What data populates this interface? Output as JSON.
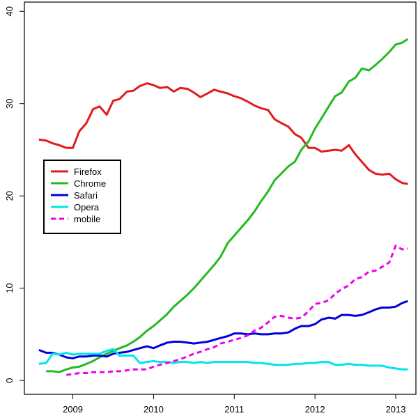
{
  "chart_data": {
    "type": "line",
    "title": "",
    "xlabel": "",
    "ylabel": "",
    "xlim": [
      2008.4,
      2013.25
    ],
    "ylim": [
      -1.5,
      41
    ],
    "x_ticks": [
      2009,
      2010,
      2011,
      2012,
      2013
    ],
    "y_ticks": [
      0,
      10,
      20,
      30,
      40
    ],
    "grid": false,
    "legend_position": "left-middle",
    "series": [
      {
        "name": "Firefox",
        "color": "#e41a1c",
        "dash": "solid",
        "points": [
          [
            2008.58,
            26.1
          ],
          [
            2008.67,
            26.0
          ],
          [
            2008.75,
            25.7
          ],
          [
            2008.83,
            25.5
          ],
          [
            2008.92,
            25.2
          ],
          [
            2009.0,
            25.2
          ],
          [
            2009.08,
            27.0
          ],
          [
            2009.17,
            27.9
          ],
          [
            2009.25,
            29.4
          ],
          [
            2009.33,
            29.7
          ],
          [
            2009.42,
            28.8
          ],
          [
            2009.5,
            30.3
          ],
          [
            2009.58,
            30.5
          ],
          [
            2009.67,
            31.3
          ],
          [
            2009.75,
            31.4
          ],
          [
            2009.83,
            31.9
          ],
          [
            2009.92,
            32.2
          ],
          [
            2010.0,
            32.0
          ],
          [
            2010.08,
            31.7
          ],
          [
            2010.17,
            31.8
          ],
          [
            2010.25,
            31.3
          ],
          [
            2010.33,
            31.7
          ],
          [
            2010.42,
            31.6
          ],
          [
            2010.5,
            31.2
          ],
          [
            2010.58,
            30.7
          ],
          [
            2010.67,
            31.1
          ],
          [
            2010.75,
            31.5
          ],
          [
            2010.83,
            31.3
          ],
          [
            2010.92,
            31.1
          ],
          [
            2011.0,
            30.8
          ],
          [
            2011.08,
            30.6
          ],
          [
            2011.17,
            30.2
          ],
          [
            2011.25,
            29.8
          ],
          [
            2011.33,
            29.5
          ],
          [
            2011.42,
            29.3
          ],
          [
            2011.5,
            28.3
          ],
          [
            2011.58,
            27.9
          ],
          [
            2011.67,
            27.5
          ],
          [
            2011.75,
            26.7
          ],
          [
            2011.83,
            26.3
          ],
          [
            2011.92,
            25.2
          ],
          [
            2012.0,
            25.2
          ],
          [
            2012.08,
            24.8
          ],
          [
            2012.17,
            24.9
          ],
          [
            2012.25,
            25.0
          ],
          [
            2012.33,
            24.9
          ],
          [
            2012.42,
            25.5
          ],
          [
            2012.5,
            24.5
          ],
          [
            2012.58,
            23.7
          ],
          [
            2012.67,
            22.8
          ],
          [
            2012.75,
            22.4
          ],
          [
            2012.83,
            22.3
          ],
          [
            2012.92,
            22.4
          ],
          [
            2013.0,
            21.8
          ],
          [
            2013.08,
            21.4
          ],
          [
            2013.15,
            21.3
          ]
        ]
      },
      {
        "name": "Chrome",
        "color": "#22bb22",
        "dash": "solid",
        "points": [
          [
            2008.67,
            1.0
          ],
          [
            2008.75,
            1.0
          ],
          [
            2008.83,
            0.9
          ],
          [
            2008.92,
            1.2
          ],
          [
            2009.0,
            1.4
          ],
          [
            2009.08,
            1.5
          ],
          [
            2009.17,
            1.8
          ],
          [
            2009.25,
            2.1
          ],
          [
            2009.33,
            2.5
          ],
          [
            2009.42,
            2.9
          ],
          [
            2009.5,
            3.2
          ],
          [
            2009.58,
            3.5
          ],
          [
            2009.67,
            3.8
          ],
          [
            2009.75,
            4.2
          ],
          [
            2009.83,
            4.7
          ],
          [
            2009.92,
            5.4
          ],
          [
            2010.0,
            5.9
          ],
          [
            2010.08,
            6.5
          ],
          [
            2010.17,
            7.2
          ],
          [
            2010.25,
            8.0
          ],
          [
            2010.33,
            8.6
          ],
          [
            2010.42,
            9.3
          ],
          [
            2010.5,
            10.0
          ],
          [
            2010.58,
            10.8
          ],
          [
            2010.67,
            11.7
          ],
          [
            2010.75,
            12.5
          ],
          [
            2010.83,
            13.4
          ],
          [
            2010.92,
            14.9
          ],
          [
            2011.0,
            15.7
          ],
          [
            2011.08,
            16.5
          ],
          [
            2011.17,
            17.4
          ],
          [
            2011.25,
            18.3
          ],
          [
            2011.33,
            19.4
          ],
          [
            2011.42,
            20.5
          ],
          [
            2011.5,
            21.7
          ],
          [
            2011.58,
            22.4
          ],
          [
            2011.67,
            23.2
          ],
          [
            2011.75,
            23.7
          ],
          [
            2011.83,
            25.0
          ],
          [
            2011.92,
            25.9
          ],
          [
            2012.0,
            27.3
          ],
          [
            2012.08,
            28.4
          ],
          [
            2012.17,
            29.7
          ],
          [
            2012.25,
            30.8
          ],
          [
            2012.33,
            31.2
          ],
          [
            2012.42,
            32.4
          ],
          [
            2012.5,
            32.8
          ],
          [
            2012.58,
            33.8
          ],
          [
            2012.67,
            33.6
          ],
          [
            2012.75,
            34.2
          ],
          [
            2012.83,
            34.8
          ],
          [
            2012.92,
            35.6
          ],
          [
            2013.0,
            36.4
          ],
          [
            2013.08,
            36.6
          ],
          [
            2013.15,
            37.0
          ]
        ]
      },
      {
        "name": "Safari",
        "color": "#0000dd",
        "dash": "solid",
        "points": [
          [
            2008.58,
            3.3
          ],
          [
            2008.67,
            3.0
          ],
          [
            2008.75,
            3.0
          ],
          [
            2008.83,
            2.8
          ],
          [
            2008.92,
            2.5
          ],
          [
            2009.0,
            2.4
          ],
          [
            2009.08,
            2.6
          ],
          [
            2009.17,
            2.6
          ],
          [
            2009.25,
            2.7
          ],
          [
            2009.33,
            2.7
          ],
          [
            2009.42,
            2.6
          ],
          [
            2009.5,
            2.9
          ],
          [
            2009.58,
            3.0
          ],
          [
            2009.67,
            3.1
          ],
          [
            2009.75,
            3.3
          ],
          [
            2009.83,
            3.5
          ],
          [
            2009.92,
            3.7
          ],
          [
            2010.0,
            3.5
          ],
          [
            2010.08,
            3.8
          ],
          [
            2010.17,
            4.1
          ],
          [
            2010.25,
            4.2
          ],
          [
            2010.33,
            4.2
          ],
          [
            2010.42,
            4.1
          ],
          [
            2010.5,
            4.0
          ],
          [
            2010.58,
            4.1
          ],
          [
            2010.67,
            4.2
          ],
          [
            2010.75,
            4.4
          ],
          [
            2010.83,
            4.6
          ],
          [
            2010.92,
            4.8
          ],
          [
            2011.0,
            5.1
          ],
          [
            2011.08,
            5.1
          ],
          [
            2011.17,
            5.0
          ],
          [
            2011.25,
            5.1
          ],
          [
            2011.33,
            5.0
          ],
          [
            2011.42,
            5.0
          ],
          [
            2011.5,
            5.1
          ],
          [
            2011.58,
            5.1
          ],
          [
            2011.67,
            5.2
          ],
          [
            2011.75,
            5.6
          ],
          [
            2011.83,
            5.9
          ],
          [
            2011.92,
            5.9
          ],
          [
            2012.0,
            6.1
          ],
          [
            2012.08,
            6.6
          ],
          [
            2012.17,
            6.8
          ],
          [
            2012.25,
            6.7
          ],
          [
            2012.33,
            7.1
          ],
          [
            2012.42,
            7.1
          ],
          [
            2012.5,
            7.0
          ],
          [
            2012.58,
            7.1
          ],
          [
            2012.67,
            7.4
          ],
          [
            2012.75,
            7.7
          ],
          [
            2012.83,
            7.9
          ],
          [
            2012.92,
            7.9
          ],
          [
            2013.0,
            8.0
          ],
          [
            2013.08,
            8.4
          ],
          [
            2013.15,
            8.6
          ]
        ]
      },
      {
        "name": "Opera",
        "color": "#00e5ee",
        "dash": "solid",
        "points": [
          [
            2008.58,
            1.8
          ],
          [
            2008.67,
            1.9
          ],
          [
            2008.75,
            2.9
          ],
          [
            2008.83,
            2.8
          ],
          [
            2008.92,
            3.0
          ],
          [
            2009.0,
            2.8
          ],
          [
            2009.08,
            2.9
          ],
          [
            2009.17,
            2.9
          ],
          [
            2009.25,
            2.9
          ],
          [
            2009.33,
            2.9
          ],
          [
            2009.42,
            3.2
          ],
          [
            2009.5,
            3.4
          ],
          [
            2009.58,
            2.7
          ],
          [
            2009.67,
            2.7
          ],
          [
            2009.75,
            2.7
          ],
          [
            2009.83,
            1.9
          ],
          [
            2009.92,
            2.0
          ],
          [
            2010.0,
            2.1
          ],
          [
            2010.08,
            2.0
          ],
          [
            2010.17,
            2.0
          ],
          [
            2010.25,
            1.9
          ],
          [
            2010.33,
            2.0
          ],
          [
            2010.42,
            2.0
          ],
          [
            2010.5,
            1.9
          ],
          [
            2010.58,
            2.0
          ],
          [
            2010.67,
            1.9
          ],
          [
            2010.75,
            2.0
          ],
          [
            2010.83,
            2.0
          ],
          [
            2010.92,
            2.0
          ],
          [
            2011.0,
            2.0
          ],
          [
            2011.08,
            2.0
          ],
          [
            2011.17,
            2.0
          ],
          [
            2011.25,
            1.9
          ],
          [
            2011.33,
            1.9
          ],
          [
            2011.42,
            1.8
          ],
          [
            2011.5,
            1.7
          ],
          [
            2011.58,
            1.7
          ],
          [
            2011.67,
            1.7
          ],
          [
            2011.75,
            1.8
          ],
          [
            2011.83,
            1.8
          ],
          [
            2011.92,
            1.9
          ],
          [
            2012.0,
            1.9
          ],
          [
            2012.08,
            2.0
          ],
          [
            2012.17,
            2.0
          ],
          [
            2012.25,
            1.7
          ],
          [
            2012.33,
            1.7
          ],
          [
            2012.42,
            1.8
          ],
          [
            2012.5,
            1.7
          ],
          [
            2012.58,
            1.7
          ],
          [
            2012.67,
            1.6
          ],
          [
            2012.75,
            1.6
          ],
          [
            2012.83,
            1.6
          ],
          [
            2012.92,
            1.4
          ],
          [
            2013.0,
            1.3
          ],
          [
            2013.08,
            1.2
          ],
          [
            2013.15,
            1.2
          ]
        ]
      },
      {
        "name": "mobile",
        "color": "#ee00ee",
        "dash": "dashed",
        "points": [
          [
            2008.92,
            0.6
          ],
          [
            2009.0,
            0.7
          ],
          [
            2009.08,
            0.8
          ],
          [
            2009.17,
            0.8
          ],
          [
            2009.25,
            0.9
          ],
          [
            2009.33,
            0.9
          ],
          [
            2009.42,
            0.9
          ],
          [
            2009.5,
            1.0
          ],
          [
            2009.58,
            1.0
          ],
          [
            2009.67,
            1.1
          ],
          [
            2009.75,
            1.2
          ],
          [
            2009.83,
            1.2
          ],
          [
            2009.92,
            1.2
          ],
          [
            2010.0,
            1.5
          ],
          [
            2010.08,
            1.7
          ],
          [
            2010.17,
            1.9
          ],
          [
            2010.25,
            2.1
          ],
          [
            2010.33,
            2.3
          ],
          [
            2010.42,
            2.6
          ],
          [
            2010.5,
            2.9
          ],
          [
            2010.58,
            3.1
          ],
          [
            2010.67,
            3.4
          ],
          [
            2010.75,
            3.6
          ],
          [
            2010.83,
            4.0
          ],
          [
            2010.92,
            4.2
          ],
          [
            2011.0,
            4.4
          ],
          [
            2011.08,
            4.6
          ],
          [
            2011.17,
            4.9
          ],
          [
            2011.25,
            5.4
          ],
          [
            2011.33,
            5.7
          ],
          [
            2011.42,
            6.3
          ],
          [
            2011.5,
            6.9
          ],
          [
            2011.58,
            7.0
          ],
          [
            2011.67,
            6.8
          ],
          [
            2011.75,
            6.7
          ],
          [
            2011.83,
            6.8
          ],
          [
            2011.92,
            7.5
          ],
          [
            2012.0,
            8.3
          ],
          [
            2012.08,
            8.4
          ],
          [
            2012.17,
            8.7
          ],
          [
            2012.25,
            9.4
          ],
          [
            2012.33,
            9.9
          ],
          [
            2012.42,
            10.3
          ],
          [
            2012.5,
            11.0
          ],
          [
            2012.58,
            11.2
          ],
          [
            2012.67,
            11.8
          ],
          [
            2012.75,
            11.9
          ],
          [
            2012.83,
            12.3
          ],
          [
            2012.92,
            12.8
          ],
          [
            2013.0,
            14.6
          ],
          [
            2013.08,
            14.2
          ],
          [
            2013.15,
            14.3
          ]
        ]
      }
    ]
  }
}
